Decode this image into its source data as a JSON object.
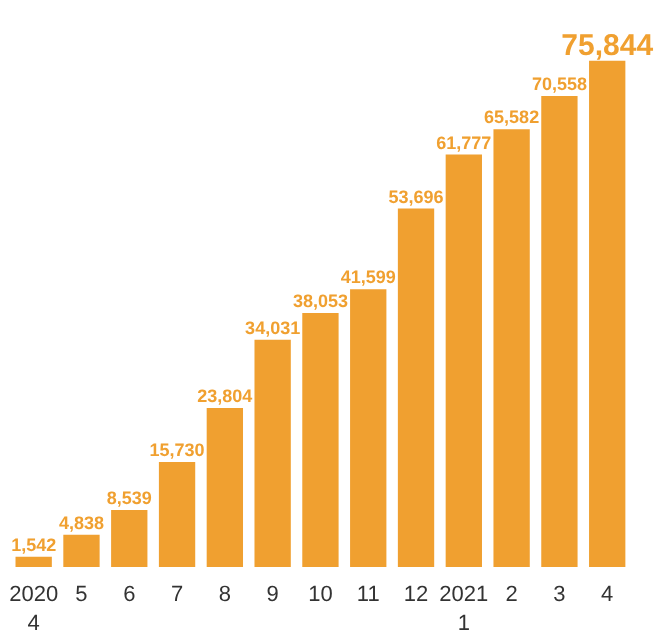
{
  "chart_data": {
    "type": "bar",
    "categories": [
      "2020\n4",
      "5",
      "6",
      "7",
      "8",
      "9",
      "10",
      "11",
      "12",
      "2021\n1",
      "2",
      "3",
      "4"
    ],
    "values": [
      1542,
      4838,
      8539,
      15730,
      23804,
      34031,
      38053,
      41599,
      53696,
      61777,
      65582,
      70558,
      75844
    ],
    "value_labels": [
      "1,542",
      "4,838",
      "8,539",
      "15,730",
      "23,804",
      "34,031",
      "38,053",
      "41,599",
      "53,696",
      "61,777",
      "65,582",
      "70,558",
      "75,844"
    ],
    "color": "#f0a030",
    "grid": false,
    "tick_labels": "x"
  }
}
